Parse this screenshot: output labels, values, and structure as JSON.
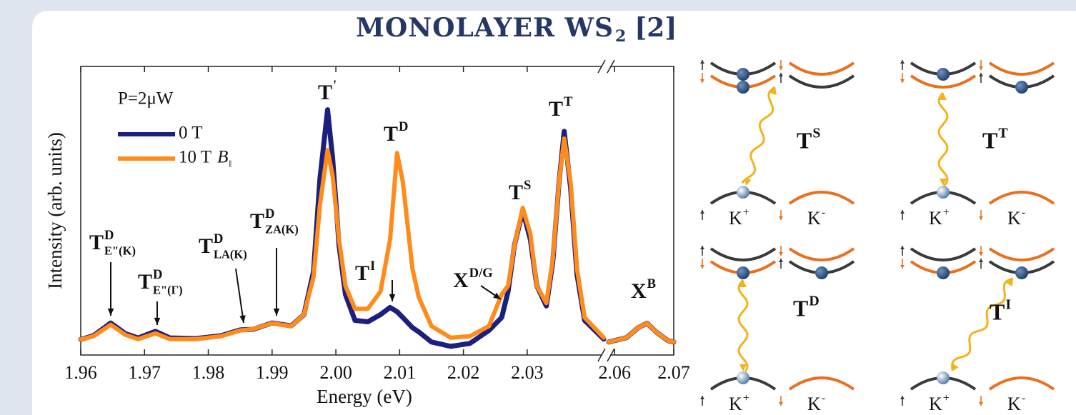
{
  "slide_title": {
    "main": "MONOLAYER WS",
    "sub": "2",
    "ref": "[2]"
  },
  "chart_data": {
    "type": "line",
    "x_label": "Energy (eV)",
    "y_label": "Intensity (arb. units)",
    "legend_title": "P=2μW",
    "legend_field": {
      "main": "B",
      "sub": "‖"
    },
    "xlim": [
      1.96,
      2.07
    ],
    "x_break": [
      2.042,
      2.059
    ],
    "ylim": [
      0,
      100
    ],
    "xticks": [
      1.96,
      1.97,
      1.98,
      1.99,
      {
        "value": 2.0,
        "label": "2.00"
      },
      2.01,
      2.02,
      2.03,
      2.06,
      2.07
    ],
    "x": [
      1.96,
      1.962,
      1.9647,
      1.967,
      1.969,
      1.9717,
      1.974,
      1.978,
      1.982,
      1.985,
      1.987,
      1.99,
      1.993,
      1.995,
      1.9965,
      1.9975,
      1.9987,
      1.9995,
      2.0005,
      2.0015,
      2.003,
      2.005,
      2.007,
      2.0085,
      2.0096,
      2.0105,
      2.012,
      2.013,
      2.015,
      2.018,
      2.021,
      2.024,
      2.026,
      2.027,
      2.028,
      2.0293,
      2.0305,
      2.0315,
      2.033,
      2.034,
      2.035,
      2.0358,
      2.0368,
      2.0378,
      2.039,
      2.042,
      2.059,
      2.062,
      2.064,
      2.0655,
      2.067,
      2.069,
      2.07
    ],
    "series": [
      {
        "name": "0 T",
        "color": "#1c1f7e",
        "values": [
          5.4,
          6.7,
          11.1,
          7.4,
          5.9,
          8.2,
          5.9,
          5.7,
          6.7,
          8.7,
          8.9,
          11.1,
          10.1,
          14,
          29,
          61,
          85,
          68,
          38,
          21,
          12,
          11.5,
          14,
          16.5,
          15,
          13,
          9.5,
          8,
          4.5,
          3,
          4,
          8.5,
          13,
          22,
          38,
          50,
          40,
          24,
          17,
          32,
          60,
          77.5,
          58,
          28,
          12,
          5.5,
          4.5,
          6,
          9.5,
          11,
          8,
          5,
          4.5
        ]
      },
      {
        "name": "10 T",
        "color": "#ff8c1a",
        "values": [
          5.4,
          6.5,
          10.5,
          7,
          5.5,
          7.5,
          5.5,
          5.5,
          6.5,
          8.5,
          9,
          11,
          10,
          14,
          27,
          52,
          71,
          62,
          40,
          24,
          16,
          16,
          22,
          40,
          70,
          60,
          30,
          20,
          10,
          6,
          6.5,
          10,
          21,
          24,
          38,
          51,
          42,
          24,
          18,
          33,
          60,
          75,
          60,
          30,
          13,
          6,
          4.5,
          6,
          9.5,
          11,
          8,
          5,
          4.5
        ]
      }
    ],
    "annotations": [
      {
        "main": "T",
        "sup": "'"
      },
      {
        "main": "T",
        "sup": "D"
      },
      {
        "main": "T",
        "sup": "S"
      },
      {
        "main": "T",
        "sup": "T"
      },
      {
        "main": "T",
        "sup": "I"
      },
      {
        "main": "X",
        "sup": "D/G"
      },
      {
        "main": "X",
        "sup": "B"
      },
      {
        "main": "T",
        "sup": "D",
        "sub": "E\"(K)"
      },
      {
        "main": "T",
        "sup": "D",
        "sub": "E\"(Γ)"
      },
      {
        "main": "T",
        "sup": "D",
        "sub": "LA(K)"
      },
      {
        "main": "T",
        "sup": "D",
        "sub": "ZA(K)"
      }
    ]
  },
  "diagrams": {
    "valleys": [
      {
        "main": "K",
        "sup": "+"
      },
      {
        "main": "K",
        "sup": "-"
      }
    ],
    "panels": [
      {
        "label": {
          "main": "T",
          "sup": "S"
        }
      },
      {
        "label": {
          "main": "T",
          "sup": "T"
        }
      },
      {
        "label": {
          "main": "T",
          "sup": "D"
        }
      },
      {
        "label": {
          "main": "T",
          "sup": "I"
        }
      }
    ]
  }
}
